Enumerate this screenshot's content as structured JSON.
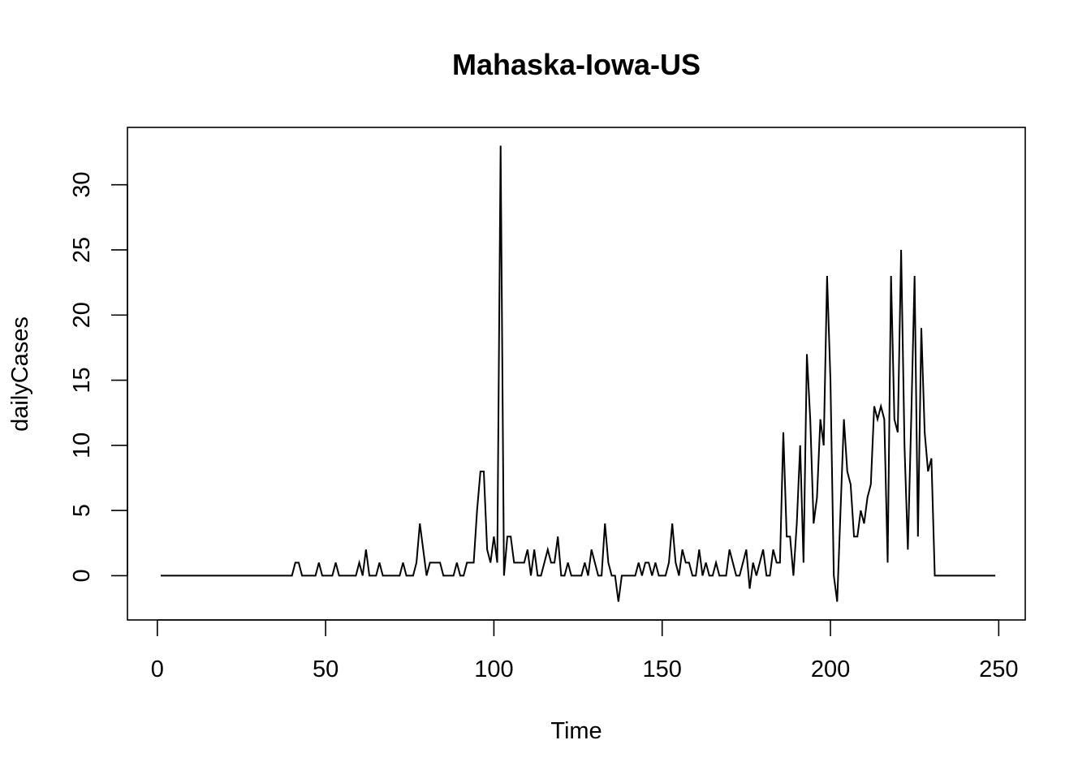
{
  "chart_data": {
    "type": "line",
    "title": "Mahaska-Iowa-US",
    "xlabel": "Time",
    "ylabel": "dailyCases",
    "xlim": [
      1,
      248
    ],
    "ylim": [
      -2,
      33
    ],
    "x_ticks": [
      0,
      50,
      100,
      150,
      200,
      250
    ],
    "y_ticks": [
      0,
      5,
      10,
      15,
      20,
      25,
      30
    ],
    "grid": false,
    "legend": "none",
    "line_color": "#000000",
    "series": [
      {
        "values": [
          0,
          0,
          0,
          0,
          0,
          0,
          0,
          0,
          0,
          0,
          0,
          0,
          0,
          0,
          0,
          0,
          0,
          0,
          0,
          0,
          0,
          0,
          0,
          0,
          0,
          0,
          0,
          0,
          0,
          0,
          0,
          0,
          0,
          0,
          0,
          0,
          0,
          0,
          0,
          0,
          1,
          1,
          0,
          0,
          0,
          0,
          0,
          1,
          0,
          0,
          0,
          0,
          1,
          0,
          0,
          0,
          0,
          0,
          0,
          1,
          0,
          2,
          0,
          0,
          0,
          1,
          0,
          0,
          0,
          0,
          0,
          0,
          1,
          0,
          0,
          0,
          1,
          4,
          2,
          0,
          1,
          1,
          1,
          1,
          0,
          0,
          0,
          0,
          1,
          0,
          0,
          1,
          1,
          1,
          5,
          8,
          8,
          2,
          1,
          3,
          1,
          33,
          0,
          3,
          3,
          1,
          1,
          1,
          1,
          2,
          0,
          2,
          0,
          0,
          1,
          2,
          1,
          1,
          3,
          0,
          0,
          1,
          0,
          0,
          0,
          0,
          1,
          0,
          2,
          1,
          0,
          0,
          4,
          1,
          0,
          0,
          -2,
          0,
          0,
          0,
          0,
          0,
          1,
          0,
          1,
          1,
          0,
          1,
          0,
          0,
          0,
          1,
          4,
          1,
          0,
          2,
          1,
          1,
          0,
          0,
          2,
          0,
          1,
          0,
          0,
          1,
          0,
          0,
          0,
          2,
          1,
          0,
          0,
          1,
          2,
          -1,
          1,
          0,
          1,
          2,
          0,
          0,
          2,
          1,
          1,
          11,
          3,
          3,
          0,
          4,
          10,
          1,
          17,
          12,
          4,
          6,
          12,
          10,
          23,
          15,
          0,
          -2,
          5,
          12,
          8,
          7,
          3,
          3,
          5,
          4,
          6,
          7,
          13,
          12,
          13,
          12,
          1,
          23,
          12,
          11,
          25,
          10,
          2,
          12,
          23,
          3,
          19,
          11,
          8,
          9,
          0,
          0,
          0,
          0,
          0,
          0,
          0,
          0,
          0,
          0,
          0,
          0,
          0,
          0,
          0,
          0,
          0,
          0,
          0
        ]
      }
    ]
  }
}
